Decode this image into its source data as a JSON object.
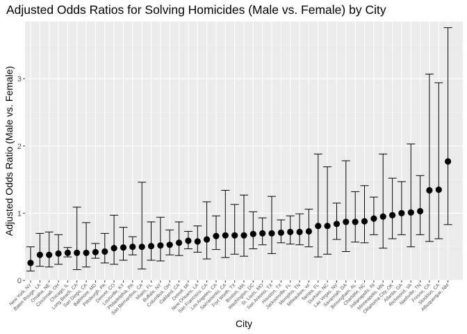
{
  "chart_data": {
    "type": "scatter",
    "title": "Adjusted Odds Ratios for Solving Homicides (Male vs. Female) by City",
    "xlabel": "City",
    "ylabel": "Adjusted Odds Ratio (Male vs. Female)",
    "ylim": [
      0,
      3.85
    ],
    "yticks": [
      0,
      1,
      2,
      3
    ],
    "grid": true,
    "legend": "none",
    "colors": {
      "panel": "#ebebeb",
      "grid_major": "#ffffff",
      "grid_minor": "#f5f5f5",
      "point": "#000000",
      "errorbar": "#000000",
      "tick_text": "#4d4d4d"
    },
    "series": [
      {
        "categories": [
          "New York, NY",
          "Baton Rouge, LA",
          "Omaha, NE",
          "Cincinnati, OH",
          "Chicago, IL",
          "Long Beach, CA",
          "San Diego, CA",
          "Baltimore, MD",
          "Pittsburgh, PA",
          "Denver, CO",
          "Louisville, KY",
          "Philadelphia, PA",
          "San Bernardino, CA",
          "Miami, FL",
          "Buffalo, NY",
          "Columbus, OH",
          "Oakland, CA",
          "Detroit, MI",
          "New Orleans, LA",
          "San Francisco, CA",
          "Los Angeles, CA",
          "Sacramento, CA",
          "Fort Worth, TX",
          "Boston, MA",
          "Washington, DC",
          "St. Louis, MO",
          "San Antonio, TX",
          "Houston, TX",
          "Jacksonville, FL",
          "Memphis, TN",
          "Milwaukee, wI",
          "Tampa, FL",
          "Durham, NC",
          "Las Vegas, NV",
          "Savannah, GA",
          "Birmingham, AL",
          "Charlotte, NC",
          "Indianapolis, IN",
          "Minneapolis, MN",
          "Oklahoma City, OK",
          "Atlanta, GA",
          "Richmond, VA",
          "Nashville, TN",
          "Fresno, CA",
          "Stockton, CA",
          "Albuquerque, NM"
        ],
        "or": [
          0.26,
          0.38,
          0.38,
          0.4,
          0.41,
          0.41,
          0.41,
          0.42,
          0.43,
          0.48,
          0.49,
          0.5,
          0.5,
          0.51,
          0.52,
          0.53,
          0.56,
          0.59,
          0.58,
          0.61,
          0.66,
          0.67,
          0.67,
          0.67,
          0.69,
          0.7,
          0.7,
          0.71,
          0.72,
          0.72,
          0.73,
          0.81,
          0.81,
          0.84,
          0.87,
          0.87,
          0.88,
          0.92,
          0.95,
          0.97,
          1.0,
          1.01,
          1.03,
          1.34,
          1.35,
          1.77
        ],
        "lower": [
          0.14,
          0.21,
          0.2,
          0.24,
          0.35,
          0.16,
          0.2,
          0.33,
          0.26,
          0.24,
          0.3,
          0.38,
          0.17,
          0.3,
          0.29,
          0.38,
          0.37,
          0.47,
          0.42,
          0.32,
          0.46,
          0.34,
          0.39,
          0.36,
          0.47,
          0.53,
          0.4,
          0.56,
          0.54,
          0.53,
          0.5,
          0.35,
          0.39,
          0.61,
          0.43,
          0.57,
          0.56,
          0.68,
          0.48,
          0.62,
          0.68,
          0.5,
          0.68,
          0.58,
          0.62,
          0.83
        ],
        "upper": [
          0.5,
          0.7,
          0.72,
          0.68,
          0.49,
          1.09,
          0.86,
          0.55,
          0.7,
          0.97,
          0.79,
          0.65,
          1.46,
          0.87,
          0.94,
          0.75,
          0.87,
          0.73,
          0.81,
          1.17,
          0.96,
          1.34,
          1.13,
          1.27,
          1.02,
          0.93,
          1.25,
          0.9,
          0.96,
          0.99,
          1.06,
          1.88,
          1.69,
          1.15,
          1.78,
          1.32,
          1.41,
          1.24,
          1.88,
          1.52,
          1.47,
          2.03,
          1.56,
          3.07,
          2.94,
          3.76
        ]
      }
    ]
  }
}
